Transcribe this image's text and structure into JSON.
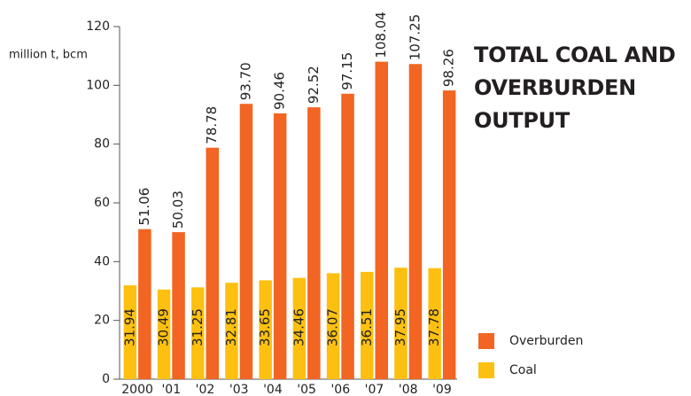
{
  "chart_data": {
    "type": "bar",
    "title": "TOTAL COAL AND OVERBURDEN OUTPUT",
    "y_label": "million t, bcm",
    "categories": [
      "2000",
      "'01",
      "'02",
      "'03",
      "'04",
      "'05",
      "'06",
      "'07",
      "'08",
      "'09"
    ],
    "series": [
      {
        "name": "Coal",
        "color": "#fdc010",
        "values": [
          31.94,
          30.49,
          31.25,
          32.81,
          33.65,
          34.46,
          36.07,
          36.51,
          37.95,
          37.78
        ],
        "value_labels": [
          "31.94",
          "30.49",
          "31.25",
          "32.81",
          "33.65",
          "34.46",
          "36.07",
          "36.51",
          "37.95",
          "37.78"
        ]
      },
      {
        "name": "Overburden",
        "color": "#f26522",
        "values": [
          51.06,
          50.03,
          78.78,
          93.7,
          90.46,
          92.52,
          97.15,
          108.04,
          107.25,
          98.26
        ],
        "value_labels": [
          "51.06",
          "50.03",
          "78.78",
          "93.70",
          "90.46",
          "92.52",
          "97.15",
          "108.04",
          "107.25",
          "98.26"
        ]
      }
    ],
    "ylim": [
      0,
      120
    ],
    "yticks": [
      0,
      20,
      40,
      60,
      80,
      100,
      120
    ]
  }
}
